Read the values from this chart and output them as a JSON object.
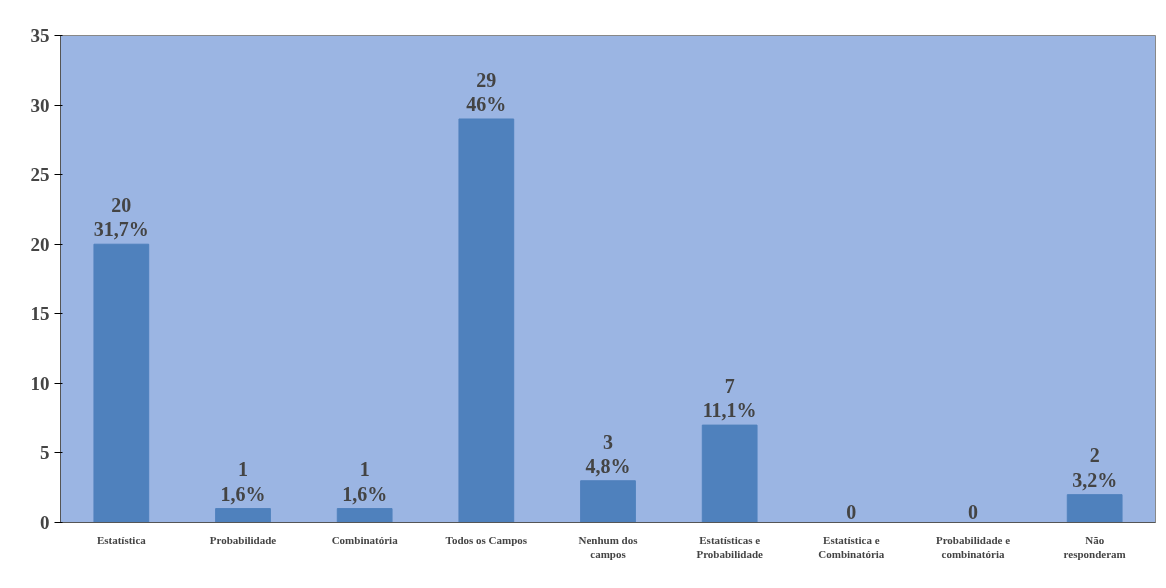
{
  "chart_data": {
    "type": "bar",
    "categories": [
      "Estatística",
      "Probabilidade",
      "Combinatória",
      "Todos os Campos",
      "Nenhum dos\ncampos",
      "Estatísticas e\nProbabilidade",
      "Estatística e\nCombinatória",
      "Probabilidade e\ncombinatória",
      "Não\nresponderam"
    ],
    "values": [
      20,
      1,
      1,
      29,
      3,
      7,
      0,
      0,
      2
    ],
    "value_labels": [
      "20\n31,7%",
      "1\n1,6%",
      "1\n1,6%",
      "29\n46%",
      "3\n4,8%",
      "7\n11,1%",
      "0",
      "0",
      "2\n3,2%"
    ],
    "color": "#4f81bd",
    "ylim": [
      0,
      35
    ],
    "yticks": [
      0,
      5,
      10,
      15,
      20,
      25,
      30,
      35
    ]
  }
}
